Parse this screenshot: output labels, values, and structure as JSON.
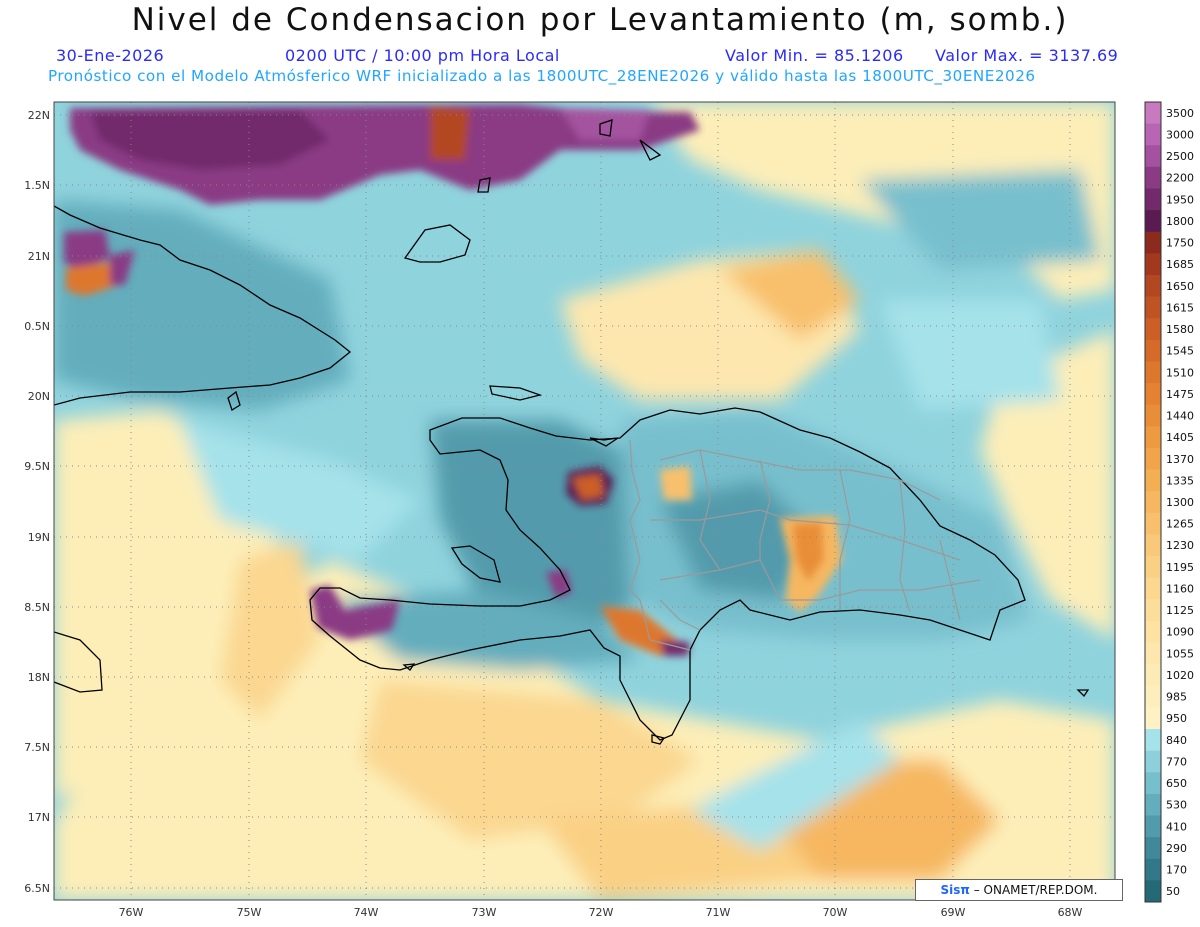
{
  "header": {
    "title": "Nivel de Condensacion por Levantamiento (m, somb.)",
    "date": "30-Ene-2026",
    "time": "0200 UTC / 10:00 pm Hora Local",
    "min": "Valor Min. = 85.1206",
    "max": "Valor Max. = 3137.69",
    "model_info": "Pronóstico con el Modelo Atmósferico WRF inicializado a las 1800UTC_28ENE2026 y válido hasta las  1800UTC_30ENE2026"
  },
  "lat_labels": [
    "22N",
    "1.5N",
    "21N",
    "0.5N",
    "20N",
    "9.5N",
    "19N",
    "8.5N",
    "18N",
    "7.5N",
    "17N",
    "6.5N"
  ],
  "lon_labels": [
    "76W",
    "75W",
    "74W",
    "73W",
    "72W",
    "71W",
    "70W",
    "69W",
    "68W"
  ],
  "colorbar": {
    "labels": [
      "3500",
      "3000",
      "2500",
      "2200",
      "1950",
      "1800",
      "1750",
      "1685",
      "1650",
      "1615",
      "1580",
      "1545",
      "1510",
      "1475",
      "1440",
      "1405",
      "1370",
      "1335",
      "1300",
      "1265",
      "1230",
      "1195",
      "1160",
      "1125",
      "1090",
      "1055",
      "1020",
      "985",
      "950",
      "840",
      "770",
      "650",
      "530",
      "410",
      "290",
      "170",
      "50"
    ],
    "colors": [
      "#c77ac0",
      "#b866b4",
      "#a4529f",
      "#8a3b84",
      "#722a6c",
      "#5a1b52",
      "#8c2a1e",
      "#a2381e",
      "#b34722",
      "#c05324",
      "#cc5e26",
      "#d66a2a",
      "#de772e",
      "#e48232",
      "#e98e38",
      "#ee9a40",
      "#f1a44a",
      "#f4ae54",
      "#f6b760",
      "#f8c06c",
      "#f9c878",
      "#fad084",
      "#fbd790",
      "#fcdd9a",
      "#fde2a4",
      "#fde7ae",
      "#fdebb6",
      "#fdeebd",
      "#fef1c4",
      "#a5e2ea",
      "#8dd0dc",
      "#78bfcd",
      "#64adbd",
      "#529bac",
      "#41899a",
      "#337888",
      "#256876"
    ]
  },
  "credit": {
    "sis": "Sisπ",
    "rest": " – ONAMET/REP.DOM."
  }
}
